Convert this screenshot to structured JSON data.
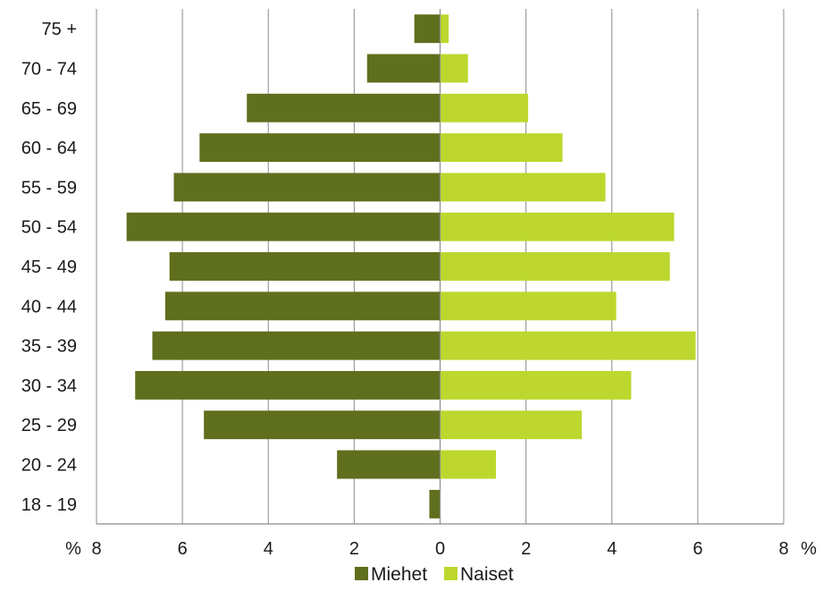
{
  "chart_data": {
    "type": "bar",
    "orientation": "horizontal",
    "layout": "population-pyramid",
    "categories": [
      "75 +",
      "70 - 74",
      "65 - 69",
      "60 - 64",
      "55 - 59",
      "50 - 54",
      "45 - 49",
      "40 - 44",
      "35 - 39",
      "30 - 34",
      "25 - 29",
      "20 - 24",
      "18 - 19"
    ],
    "series": [
      {
        "name": "Miehet",
        "color": "#5f6f1d",
        "side": "left",
        "values": [
          0.6,
          1.7,
          4.5,
          5.6,
          6.2,
          7.3,
          6.3,
          6.4,
          6.7,
          7.1,
          5.5,
          2.4,
          0.25
        ]
      },
      {
        "name": "Naiset",
        "color": "#bdd72e",
        "side": "right",
        "values": [
          0.2,
          0.65,
          2.05,
          2.85,
          3.85,
          5.45,
          5.35,
          4.1,
          5.95,
          4.45,
          3.3,
          1.3,
          0.0
        ]
      }
    ],
    "xticks": [
      "8",
      "6",
      "4",
      "2",
      "0",
      "2",
      "4",
      "6",
      "8"
    ],
    "xlim": [
      -8,
      8
    ],
    "x_unit_left": "%",
    "x_unit_right": "%",
    "grid": "vertical",
    "legend": {
      "position": "bottom",
      "items": [
        "Miehet",
        "Naiset"
      ]
    }
  }
}
